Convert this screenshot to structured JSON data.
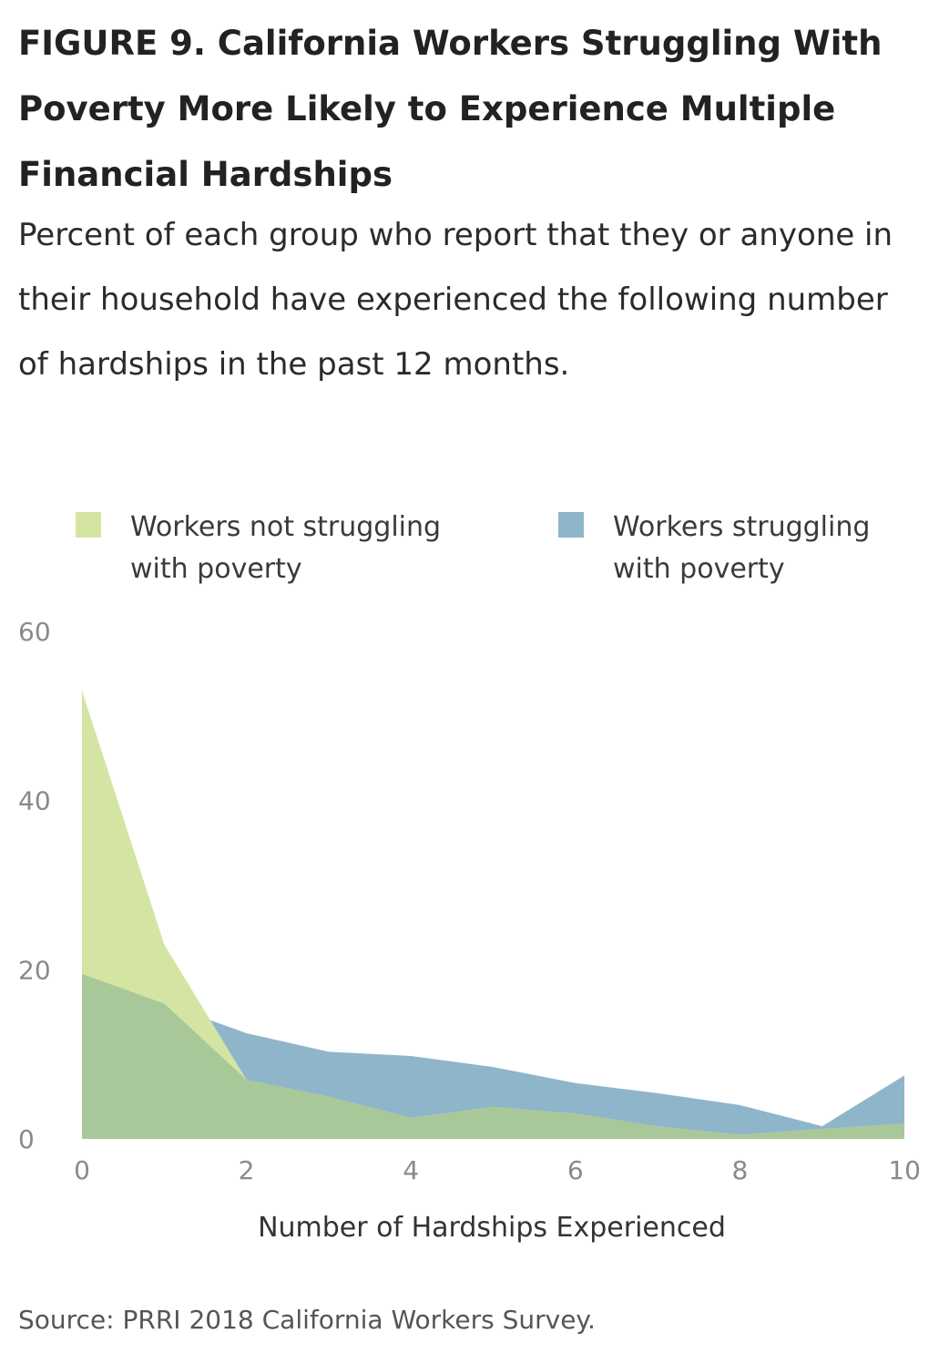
{
  "title": "FIGURE 9. California Workers Struggling With Poverty More Likely to Experience Multiple Financial Hardships",
  "subtitle": "Percent of each group who report that they or anyone in their household have experienced the following number of hardships in the past 12 months.",
  "source": "Source: PRRI 2018 California Workers Survey.",
  "colors": {
    "not_struggling": "#d4e5a3",
    "struggling": "#8fb5cb",
    "overlap": "#a9c89a"
  },
  "chart_data": {
    "type": "area",
    "title": "",
    "xlabel": "Number of Hardships Experienced",
    "ylabel": "",
    "xlim": [
      0,
      10
    ],
    "ylim": [
      0,
      60
    ],
    "x_ticks": [
      "0",
      "2",
      "4",
      "6",
      "8",
      "10"
    ],
    "y_ticks": [
      "0",
      "20",
      "40",
      "60"
    ],
    "grid": false,
    "legend_position": "top",
    "x": [
      0,
      1,
      2,
      3,
      4,
      5,
      6,
      7,
      8,
      9,
      10
    ],
    "series": [
      {
        "name": "Workers not struggling with poverty",
        "color": "#d4e5a3",
        "values": [
          53,
          23,
          7,
          5,
          2.5,
          3.8,
          3,
          1.5,
          0.5,
          1.2,
          1.8
        ]
      },
      {
        "name": "Workers struggling with poverty",
        "color": "#8fb5cb",
        "values": [
          19.5,
          16,
          12.5,
          10.3,
          9.8,
          8.5,
          6.6,
          5.4,
          4,
          1.5,
          7.5
        ]
      }
    ]
  }
}
